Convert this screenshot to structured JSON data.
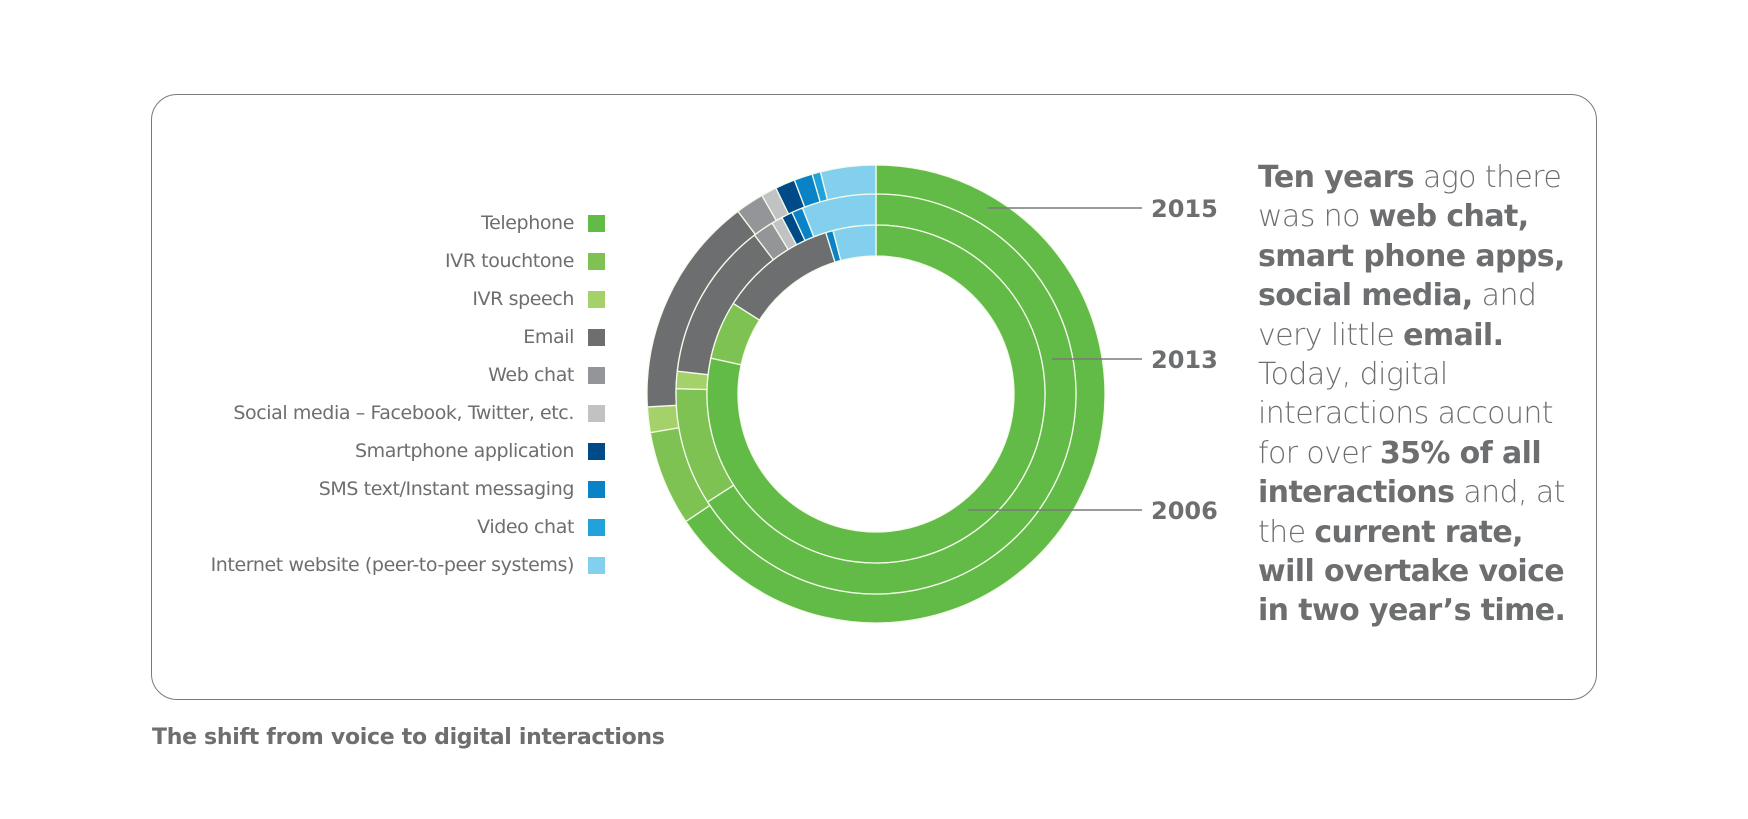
{
  "chart_data": {
    "type": "pie",
    "subtype": "nested-donut",
    "title": "The shift from voice to digital interactions",
    "legend_position": "left",
    "categories": [
      "Telephone",
      "IVR touchtone",
      "IVR speech",
      "Email",
      "Web chat",
      "Social media – Facebook, Twitter, etc.",
      "Smartphone application",
      "SMS text/Instant messaging",
      "Video chat",
      "Internet website (peer-to-peer systems)"
    ],
    "colors": [
      "#62bb46",
      "#7ec253",
      "#a4d16a",
      "#6d6e70",
      "#939598",
      "#c1c2c4",
      "#004b87",
      "#0a82c8",
      "#21a2db",
      "#82d0ee"
    ],
    "series": [
      {
        "name": "2015",
        "ring": "outer",
        "values": [
          65.6,
          6.7,
          1.8,
          15.6,
          2.0,
          1.1,
          1.4,
          1.3,
          0.6,
          3.9
        ]
      },
      {
        "name": "2013",
        "ring": "middle",
        "values": [
          66.0,
          9.5,
          1.4,
          12.8,
          1.7,
          0.9,
          0.9,
          0.9,
          0.0,
          6.0
        ]
      },
      {
        "name": "2006",
        "ring": "inner",
        "values": [
          78.4,
          5.6,
          0.0,
          11.2,
          0.0,
          0.0,
          0.0,
          0.7,
          0.0,
          4.1
        ]
      }
    ],
    "units": "% of interactions (estimated from arc angles)"
  },
  "legend": {
    "items": [
      {
        "label": "Telephone",
        "color": "#62bb46"
      },
      {
        "label": "IVR touchtone",
        "color": "#7ec253"
      },
      {
        "label": "IVR speech",
        "color": "#a4d16a"
      },
      {
        "label": "Email",
        "color": "#6d6e70"
      },
      {
        "label": "Web chat",
        "color": "#939598"
      },
      {
        "label": "Social media – Facebook, Twitter, etc.",
        "color": "#c1c2c4"
      },
      {
        "label": "Smartphone application",
        "color": "#004b87"
      },
      {
        "label": "SMS text/Instant messaging",
        "color": "#0a82c8"
      },
      {
        "label": "Video chat",
        "color": "#21a2db"
      },
      {
        "label": "Internet website (peer-to-peer systems)",
        "color": "#82d0ee"
      }
    ]
  },
  "year_labels": {
    "outer": "2015",
    "middle": "2013",
    "inner": "2006"
  },
  "blurb": {
    "lines": [
      [
        {
          "t": "Ten years",
          "b": true
        },
        {
          "t": " ago there",
          "b": false
        }
      ],
      [
        {
          "t": "was no ",
          "b": false
        },
        {
          "t": "web chat,",
          "b": true
        }
      ],
      [
        {
          "t": "smart phone apps,",
          "b": true
        }
      ],
      [
        {
          "t": "social media,",
          "b": true
        },
        {
          "t": " and",
          "b": false
        }
      ],
      [
        {
          "t": "very little ",
          "b": false
        },
        {
          "t": "email.",
          "b": true
        }
      ],
      [
        {
          "t": "Today, digital",
          "b": false
        }
      ],
      [
        {
          "t": "interactions account",
          "b": false
        }
      ],
      [
        {
          "t": "for over ",
          "b": false
        },
        {
          "t": "35% of all",
          "b": true
        }
      ],
      [
        {
          "t": "interactions",
          "b": true
        },
        {
          "t": " and, at",
          "b": false
        }
      ],
      [
        {
          "t": "the ",
          "b": false
        },
        {
          "t": "current rate,",
          "b": true
        }
      ],
      [
        {
          "t": "will overtake voice",
          "b": true
        }
      ],
      [
        {
          "t": "in two year’s time.",
          "b": true
        }
      ]
    ]
  },
  "caption": "The shift from voice to digital interactions"
}
